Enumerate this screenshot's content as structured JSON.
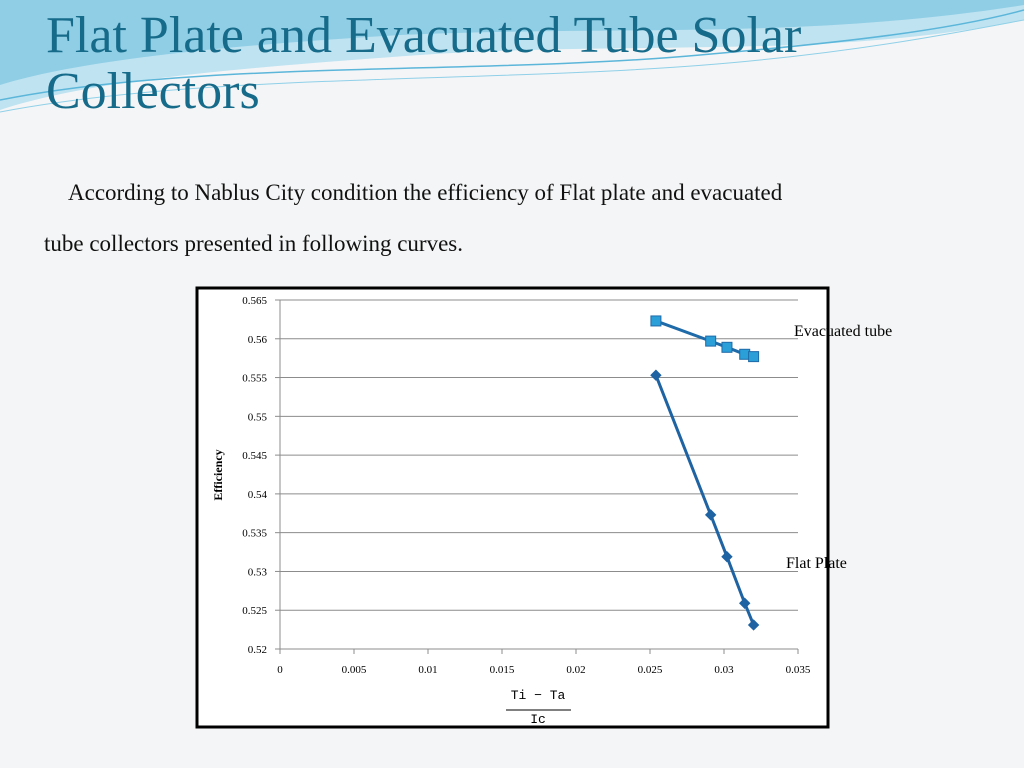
{
  "slide": {
    "title": "Flat Plate and Evacuated Tube Solar Collectors",
    "paragraph": [
      "According to Nablus City condition the efficiency of  Flat plate and evacuated",
      "tube collectors presented in following curves."
    ]
  },
  "chart_data": {
    "type": "line",
    "y_label": "Efficiency",
    "x_label": {
      "numerator": "Ti − Ta",
      "denominator": "Ic"
    },
    "xlim": [
      0,
      0.035
    ],
    "xticks": [
      0,
      0.005,
      0.01,
      0.015,
      0.02,
      0.025,
      0.03,
      0.035
    ],
    "ylim": [
      0.52,
      0.565
    ],
    "yticks": [
      0.52,
      0.525,
      0.53,
      0.535,
      0.54,
      0.545,
      0.55,
      0.555,
      0.56,
      0.565
    ],
    "grid": true,
    "series": [
      {
        "name": "Evacuated tube",
        "color": "#1f6aa8",
        "marker": "square",
        "marker_color": "#2a9fd8",
        "x": [
          0.0254,
          0.0291,
          0.0302,
          0.0314,
          0.032
        ],
        "values": [
          0.5623,
          0.5597,
          0.5589,
          0.558,
          0.5577
        ]
      },
      {
        "name": "Flat Plate",
        "color": "#1f63a3",
        "marker": "diamond",
        "marker_color": "#1f63a3",
        "x": [
          0.0254,
          0.0291,
          0.0302,
          0.0314,
          0.032
        ],
        "values": [
          0.5553,
          0.5373,
          0.5319,
          0.5259,
          0.5231
        ]
      }
    ]
  }
}
